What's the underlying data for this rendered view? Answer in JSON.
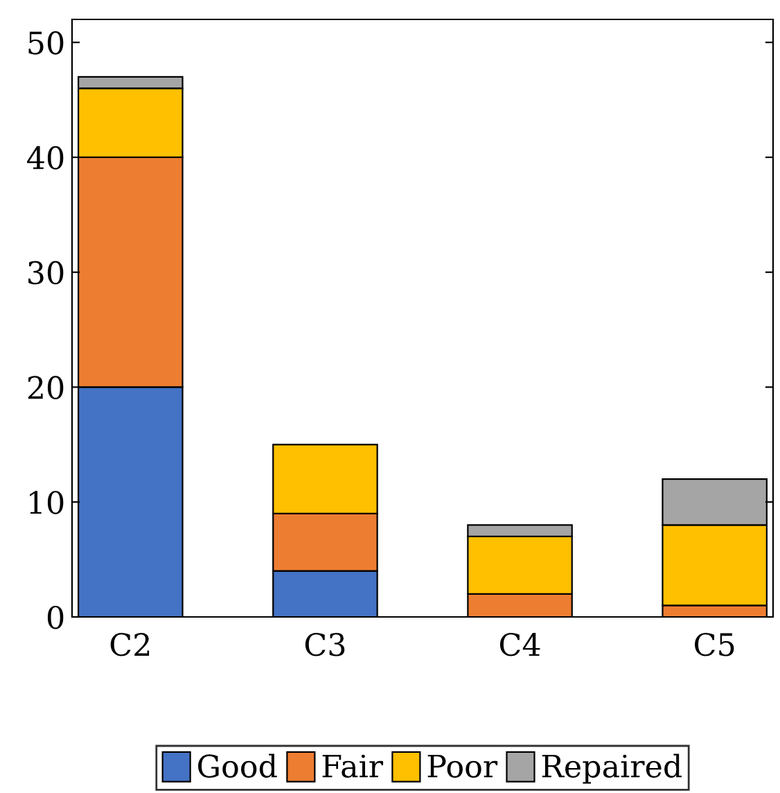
{
  "chart_data": {
    "type": "bar",
    "stacked": true,
    "categories": [
      "C2",
      "C3",
      "C4",
      "C5"
    ],
    "series": [
      {
        "name": "Good",
        "color": "#4472c4",
        "values": [
          20,
          4,
          0,
          0
        ]
      },
      {
        "name": "Fair",
        "color": "#ed7d31",
        "values": [
          20,
          5,
          2,
          1
        ]
      },
      {
        "name": "Poor",
        "color": "#ffc000",
        "values": [
          6,
          6,
          5,
          7
        ]
      },
      {
        "name": "Repaired",
        "color": "#a5a5a5",
        "values": [
          1,
          0,
          1,
          4
        ]
      }
    ],
    "ylim": [
      0,
      52
    ],
    "yticks": [
      0,
      10,
      20,
      30,
      40,
      50
    ],
    "grid": false,
    "legend": "bottom"
  }
}
